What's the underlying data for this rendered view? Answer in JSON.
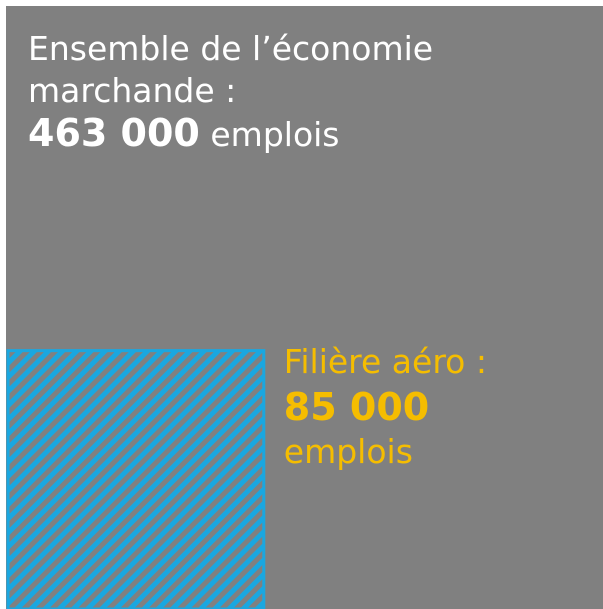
{
  "chart_data": {
    "type": "nested-square",
    "series": [
      {
        "name": "Ensemble de l’économie marchande :",
        "color": "#808080",
        "label_color": "#ffffff",
        "values": [
          463000
        ],
        "value_labels": [
          "463 000"
        ],
        "unit": "emplois"
      },
      {
        "name": "Filière aéro :",
        "color": "#1aa7e0",
        "label_color": "#f5bd00",
        "values": [
          85000
        ],
        "value_labels": [
          "85 000"
        ],
        "unit": "emplois"
      }
    ]
  }
}
